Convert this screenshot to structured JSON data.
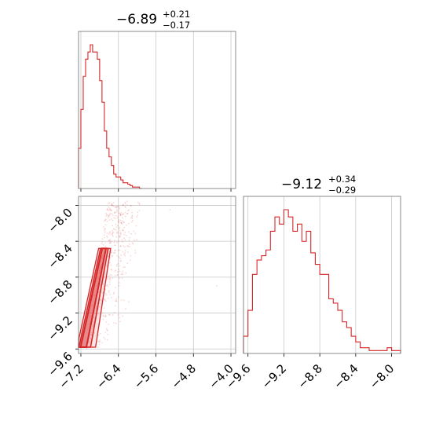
{
  "colors": {
    "series": "#d62728",
    "grid": "#c8c8c8",
    "frame": "#6e6e6e"
  },
  "chart_data": {
    "type": "corner",
    "parameters": [
      {
        "median": "−6.89",
        "plus": "+0.21",
        "minus": "−0.17",
        "range": [
          -7.25,
          -3.9
        ]
      },
      {
        "median": "−9.12",
        "plus": "+0.34",
        "minus": "−0.29",
        "range": [
          -9.65,
          -7.9
        ]
      }
    ],
    "x_ticks_param1": [
      "−7.2",
      "−6.4",
      "−5.6",
      "−4.8",
      "−4.0"
    ],
    "x_ticks_param2": [
      "−9.6",
      "−9.2",
      "−8.8",
      "−8.4",
      "−8.0"
    ],
    "y_ticks_param2": [
      "−8.0",
      "−8.4",
      "−8.8",
      "−9.2",
      "−9.6"
    ],
    "x_tick_values_param1": [
      -7.2,
      -6.4,
      -5.6,
      -4.8,
      -4.0
    ],
    "x_tick_values_param2": [
      -9.6,
      -9.2,
      -8.8,
      -8.4,
      -8.0
    ],
    "y_tick_values_param2": [
      -8.0,
      -8.4,
      -8.8,
      -9.2,
      -9.6
    ],
    "hist_param1": {
      "edges": [
        -7.25,
        -7.2,
        -7.15,
        -7.1,
        -7.05,
        -7.0,
        -6.95,
        -6.9,
        -6.85,
        -6.8,
        -6.75,
        -6.7,
        -6.65,
        -6.6,
        -6.55,
        -6.5,
        -6.45,
        -6.4,
        -6.35,
        -6.3,
        -6.25,
        -6.2,
        -6.15,
        -6.1,
        -6.05,
        -6.0,
        -5.95,
        -5.9
      ],
      "counts": [
        28,
        55,
        78,
        90,
        95,
        100,
        95,
        95,
        90,
        75,
        60,
        40,
        28,
        22,
        16,
        10,
        8,
        8,
        6,
        4,
        4,
        3,
        2,
        1,
        1,
        1,
        0
      ]
    },
    "hist_param2": {
      "edges": [
        -9.65,
        -9.6,
        -9.55,
        -9.5,
        -9.45,
        -9.4,
        -9.35,
        -9.3,
        -9.25,
        -9.2,
        -9.15,
        -9.1,
        -9.05,
        -9.0,
        -8.95,
        -8.9,
        -8.85,
        -8.8,
        -8.75,
        -8.7,
        -8.65,
        -8.6,
        -8.55,
        -8.5,
        -8.45,
        -8.4,
        -8.35,
        -8.3,
        -8.25,
        -8.2,
        -8.15,
        -8.1,
        -8.05,
        -8.0,
        -7.95,
        -7.9
      ],
      "counts": [
        12,
        30,
        55,
        65,
        68,
        72,
        85,
        95,
        90,
        100,
        95,
        85,
        90,
        78,
        85,
        70,
        62,
        55,
        55,
        38,
        35,
        30,
        22,
        18,
        12,
        8,
        4,
        4,
        2,
        2,
        2,
        2,
        4,
        2,
        2
      ]
    }
  }
}
